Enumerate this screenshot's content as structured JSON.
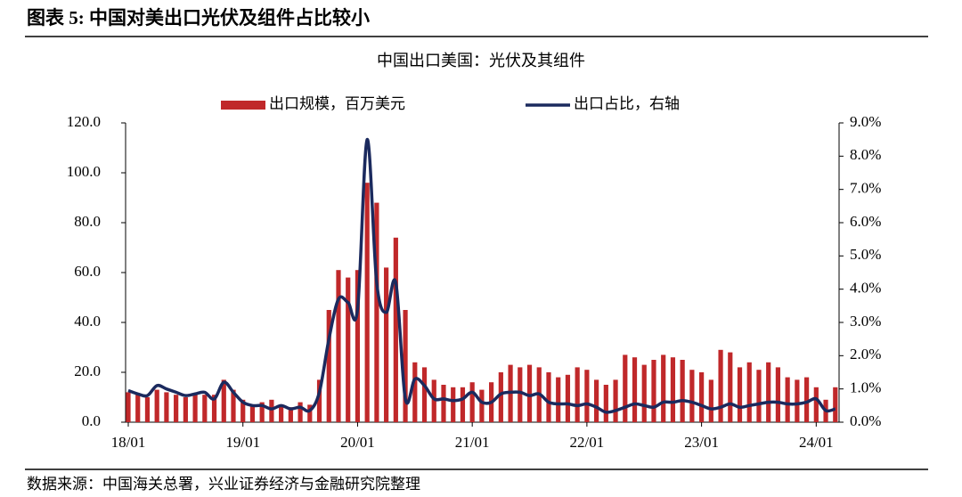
{
  "header": "图表 5: 中国对美出口光伏及组件占比较小",
  "source": "数据来源：中国海关总署，兴业证券经济与金融研究院整理",
  "chart_data": {
    "type": "bar_line",
    "title": "中国出口美国：光伏及其组件",
    "categories": [
      "18/01",
      null,
      null,
      null,
      null,
      null,
      null,
      null,
      null,
      null,
      null,
      null,
      "19/01",
      null,
      null,
      null,
      null,
      null,
      null,
      null,
      null,
      null,
      null,
      null,
      "20/01",
      null,
      null,
      null,
      null,
      null,
      null,
      null,
      null,
      null,
      null,
      null,
      "21/01",
      null,
      null,
      null,
      null,
      null,
      null,
      null,
      null,
      null,
      null,
      null,
      "22/01",
      null,
      null,
      null,
      null,
      null,
      null,
      null,
      null,
      null,
      null,
      null,
      "23/01",
      null,
      null,
      null,
      null,
      null,
      null,
      null,
      null,
      null,
      null,
      null,
      "24/01",
      null,
      null
    ],
    "series": [
      {
        "name": "出口规模，百万美元",
        "type": "bar",
        "color": "#c0282a",
        "values": [
          12,
          11,
          10,
          13,
          12,
          11,
          10,
          11,
          11,
          11,
          17,
          13,
          9,
          7,
          8,
          9,
          7,
          6,
          8,
          7,
          17,
          45,
          61,
          58,
          61,
          96,
          88,
          62,
          74,
          45,
          24,
          22,
          17,
          15,
          14,
          14,
          16,
          13,
          16,
          20,
          23,
          22,
          23,
          22,
          20,
          18,
          19,
          22,
          21,
          17,
          15,
          17,
          27,
          26,
          23,
          25,
          27,
          26,
          25,
          21,
          20,
          17,
          29,
          28,
          22,
          24,
          21,
          24,
          22,
          18,
          17,
          18,
          14,
          9,
          14
        ]
      },
      {
        "name": "出口占比，右轴",
        "type": "line",
        "axis": "y2",
        "color": "#1b2a5e",
        "values": [
          0.95,
          0.85,
          0.8,
          1.1,
          1.0,
          0.9,
          0.8,
          0.85,
          0.9,
          0.7,
          1.2,
          0.9,
          0.6,
          0.5,
          0.5,
          0.4,
          0.5,
          0.4,
          0.45,
          0.35,
          0.9,
          2.5,
          3.7,
          3.6,
          3.4,
          8.5,
          4.2,
          3.3,
          4.2,
          0.7,
          1.3,
          1.1,
          0.7,
          0.7,
          0.65,
          0.7,
          0.9,
          0.6,
          0.6,
          0.85,
          0.9,
          0.9,
          0.8,
          0.85,
          0.6,
          0.55,
          0.55,
          0.5,
          0.55,
          0.45,
          0.3,
          0.35,
          0.45,
          0.55,
          0.5,
          0.45,
          0.6,
          0.6,
          0.65,
          0.6,
          0.5,
          0.4,
          0.45,
          0.55,
          0.45,
          0.5,
          0.55,
          0.6,
          0.6,
          0.55,
          0.55,
          0.6,
          0.7,
          0.35,
          0.4
        ]
      }
    ],
    "ylim": [
      0,
      120
    ],
    "yticks": [
      {
        "value": 0,
        "label": "0.0"
      },
      {
        "value": 20,
        "label": "20.0"
      },
      {
        "value": 40,
        "label": "40.0"
      },
      {
        "value": 60,
        "label": "60.0"
      },
      {
        "value": 80,
        "label": "80.0"
      },
      {
        "value": 100,
        "label": "100.0"
      },
      {
        "value": 120,
        "label": "120.0"
      }
    ],
    "y2lim": [
      0,
      9
    ],
    "y2ticks": [
      {
        "value": 0,
        "label": "0.0%"
      },
      {
        "value": 1,
        "label": "1.0%"
      },
      {
        "value": 2,
        "label": "2.0%"
      },
      {
        "value": 3,
        "label": "3.0%"
      },
      {
        "value": 4,
        "label": "4.0%"
      },
      {
        "value": 5,
        "label": "5.0%"
      },
      {
        "value": 6,
        "label": "6.0%"
      },
      {
        "value": 7,
        "label": "7.0%"
      },
      {
        "value": 8,
        "label": "8.0%"
      },
      {
        "value": 9,
        "label": "9.0%"
      }
    ],
    "legend": "top"
  }
}
